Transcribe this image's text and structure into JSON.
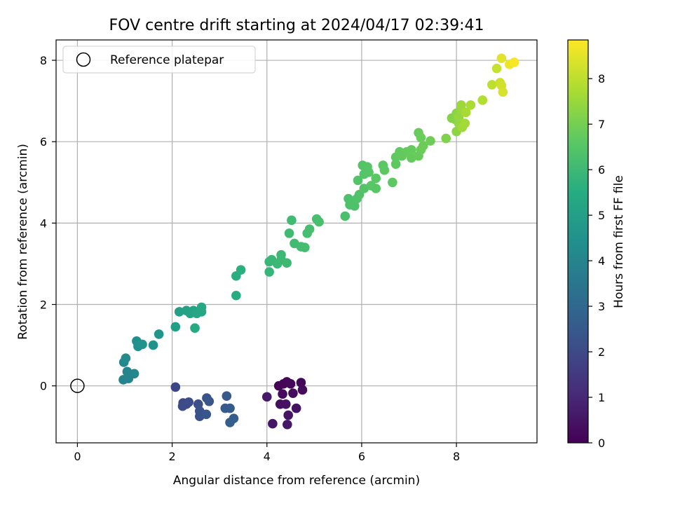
{
  "chart_data": {
    "type": "scatter",
    "title": "FOV centre drift starting at 2024/04/17 02:39:41",
    "xlabel": "Angular distance from reference (arcmin)",
    "ylabel": "Rotation from reference (arcmin)",
    "colorbar_label": "Hours from first FF file",
    "xlim": [
      -0.45,
      9.7
    ],
    "ylim": [
      -1.4,
      8.5
    ],
    "clim": [
      0,
      8.85
    ],
    "xticks": [
      "0",
      "2",
      "4",
      "6",
      "8"
    ],
    "yticks": [
      "0",
      "2",
      "4",
      "6",
      "8"
    ],
    "cticks": [
      "0",
      "1",
      "2",
      "3",
      "4",
      "5",
      "6",
      "7",
      "8"
    ],
    "grid": true,
    "colormap": "viridis",
    "legend": {
      "position": "top-left",
      "label": "Reference platepar"
    },
    "reference": {
      "x": 0,
      "y": 0
    },
    "points": [
      {
        "x": 4.25,
        "y": 0.0,
        "t": 0.05
      },
      {
        "x": 4.35,
        "y": 0.05,
        "t": 0.1
      },
      {
        "x": 4.42,
        "y": 0.1,
        "t": 0.12
      },
      {
        "x": 4.5,
        "y": 0.05,
        "t": 0.15
      },
      {
        "x": 4.72,
        "y": 0.08,
        "t": 0.18
      },
      {
        "x": 4.33,
        "y": -0.2,
        "t": 0.22
      },
      {
        "x": 4.55,
        "y": -0.18,
        "t": 0.25
      },
      {
        "x": 4.75,
        "y": -0.1,
        "t": 0.28
      },
      {
        "x": 4.28,
        "y": -0.45,
        "t": 0.35
      },
      {
        "x": 4.4,
        "y": -0.45,
        "t": 0.4
      },
      {
        "x": 4.62,
        "y": -0.55,
        "t": 0.45
      },
      {
        "x": 4.45,
        "y": -0.72,
        "t": 0.5
      },
      {
        "x": 4.12,
        "y": -0.93,
        "t": 0.55
      },
      {
        "x": 4.43,
        "y": -0.95,
        "t": 0.6
      },
      {
        "x": 4.0,
        "y": -0.27,
        "t": 0.65
      },
      {
        "x": 2.07,
        "y": -0.03,
        "t": 1.9
      },
      {
        "x": 2.23,
        "y": -0.42,
        "t": 1.95
      },
      {
        "x": 2.3,
        "y": -0.45,
        "t": 2.0
      },
      {
        "x": 2.22,
        "y": -0.5,
        "t": 2.05
      },
      {
        "x": 2.35,
        "y": -0.4,
        "t": 2.1
      },
      {
        "x": 2.55,
        "y": -0.45,
        "t": 2.15
      },
      {
        "x": 2.58,
        "y": -0.62,
        "t": 2.2
      },
      {
        "x": 2.58,
        "y": -0.75,
        "t": 2.25
      },
      {
        "x": 2.73,
        "y": -0.3,
        "t": 2.3
      },
      {
        "x": 2.78,
        "y": -0.38,
        "t": 2.35
      },
      {
        "x": 2.72,
        "y": -0.7,
        "t": 2.4
      },
      {
        "x": 3.15,
        "y": -0.25,
        "t": 2.5
      },
      {
        "x": 3.12,
        "y": -0.55,
        "t": 2.55
      },
      {
        "x": 3.22,
        "y": -0.55,
        "t": 2.6
      },
      {
        "x": 3.3,
        "y": -0.8,
        "t": 2.65
      },
      {
        "x": 3.22,
        "y": -0.9,
        "t": 2.7
      },
      {
        "x": 0.97,
        "y": 0.15,
        "t": 3.95
      },
      {
        "x": 1.08,
        "y": 0.18,
        "t": 4.0
      },
      {
        "x": 1.05,
        "y": 0.35,
        "t": 4.05
      },
      {
        "x": 1.2,
        "y": 0.3,
        "t": 4.1
      },
      {
        "x": 0.98,
        "y": 0.58,
        "t": 4.15
      },
      {
        "x": 1.02,
        "y": 0.68,
        "t": 4.2
      },
      {
        "x": 1.25,
        "y": 1.1,
        "t": 4.4
      },
      {
        "x": 1.28,
        "y": 0.97,
        "t": 4.45
      },
      {
        "x": 1.37,
        "y": 1.02,
        "t": 4.5
      },
      {
        "x": 1.6,
        "y": 1.0,
        "t": 4.55
      },
      {
        "x": 1.72,
        "y": 1.27,
        "t": 4.6
      },
      {
        "x": 2.07,
        "y": 1.45,
        "t": 5.0
      },
      {
        "x": 2.15,
        "y": 1.82,
        "t": 5.05
      },
      {
        "x": 2.3,
        "y": 1.85,
        "t": 5.1
      },
      {
        "x": 2.38,
        "y": 1.78,
        "t": 5.15
      },
      {
        "x": 2.45,
        "y": 1.85,
        "t": 5.2
      },
      {
        "x": 2.52,
        "y": 1.78,
        "t": 5.25
      },
      {
        "x": 2.62,
        "y": 1.82,
        "t": 5.3
      },
      {
        "x": 2.62,
        "y": 1.93,
        "t": 5.35
      },
      {
        "x": 2.48,
        "y": 1.42,
        "t": 5.4
      },
      {
        "x": 3.35,
        "y": 2.22,
        "t": 5.5
      },
      {
        "x": 3.35,
        "y": 2.7,
        "t": 5.55
      },
      {
        "x": 3.45,
        "y": 2.85,
        "t": 5.6
      },
      {
        "x": 4.05,
        "y": 2.8,
        "t": 5.85
      },
      {
        "x": 4.05,
        "y": 3.05,
        "t": 5.9
      },
      {
        "x": 4.1,
        "y": 3.1,
        "t": 5.92
      },
      {
        "x": 4.22,
        "y": 3.0,
        "t": 5.95
      },
      {
        "x": 4.3,
        "y": 3.1,
        "t": 5.97
      },
      {
        "x": 4.3,
        "y": 3.22,
        "t": 6.0
      },
      {
        "x": 4.42,
        "y": 3.02,
        "t": 6.02
      },
      {
        "x": 4.47,
        "y": 3.75,
        "t": 6.05
      },
      {
        "x": 4.52,
        "y": 4.07,
        "t": 6.08
      },
      {
        "x": 4.58,
        "y": 3.5,
        "t": 6.1
      },
      {
        "x": 4.72,
        "y": 3.42,
        "t": 6.12
      },
      {
        "x": 4.8,
        "y": 3.4,
        "t": 6.15
      },
      {
        "x": 4.85,
        "y": 3.75,
        "t": 6.17
      },
      {
        "x": 4.9,
        "y": 3.85,
        "t": 6.2
      },
      {
        "x": 5.05,
        "y": 4.1,
        "t": 6.22
      },
      {
        "x": 5.1,
        "y": 4.03,
        "t": 6.24
      },
      {
        "x": 5.65,
        "y": 4.17,
        "t": 6.28
      },
      {
        "x": 5.72,
        "y": 4.6,
        "t": 6.3
      },
      {
        "x": 5.75,
        "y": 4.45,
        "t": 6.32
      },
      {
        "x": 5.8,
        "y": 4.5,
        "t": 6.34
      },
      {
        "x": 5.85,
        "y": 4.42,
        "t": 6.36
      },
      {
        "x": 5.9,
        "y": 4.6,
        "t": 6.38
      },
      {
        "x": 5.95,
        "y": 4.7,
        "t": 6.4
      },
      {
        "x": 5.92,
        "y": 5.05,
        "t": 6.42
      },
      {
        "x": 6.05,
        "y": 4.85,
        "t": 6.44
      },
      {
        "x": 6.05,
        "y": 5.2,
        "t": 6.46
      },
      {
        "x": 6.02,
        "y": 5.42,
        "t": 6.48
      },
      {
        "x": 6.12,
        "y": 5.38,
        "t": 6.5
      },
      {
        "x": 6.15,
        "y": 5.25,
        "t": 6.52
      },
      {
        "x": 6.2,
        "y": 4.92,
        "t": 6.54
      },
      {
        "x": 6.3,
        "y": 4.85,
        "t": 6.56
      },
      {
        "x": 6.3,
        "y": 5.1,
        "t": 6.58
      },
      {
        "x": 6.45,
        "y": 5.42,
        "t": 6.6
      },
      {
        "x": 6.48,
        "y": 5.3,
        "t": 6.62
      },
      {
        "x": 6.65,
        "y": 5.0,
        "t": 6.64
      },
      {
        "x": 6.72,
        "y": 5.45,
        "t": 6.66
      },
      {
        "x": 6.72,
        "y": 5.62,
        "t": 6.68
      },
      {
        "x": 6.8,
        "y": 5.75,
        "t": 6.7
      },
      {
        "x": 6.85,
        "y": 5.65,
        "t": 6.72
      },
      {
        "x": 6.95,
        "y": 5.75,
        "t": 6.74
      },
      {
        "x": 7.05,
        "y": 5.6,
        "t": 6.76
      },
      {
        "x": 7.05,
        "y": 5.8,
        "t": 6.78
      },
      {
        "x": 7.2,
        "y": 5.65,
        "t": 6.8
      },
      {
        "x": 7.2,
        "y": 6.22,
        "t": 6.82
      },
      {
        "x": 7.25,
        "y": 6.1,
        "t": 6.84
      },
      {
        "x": 7.25,
        "y": 5.8,
        "t": 6.86
      },
      {
        "x": 7.3,
        "y": 5.9,
        "t": 6.88
      },
      {
        "x": 7.45,
        "y": 6.02,
        "t": 6.9
      },
      {
        "x": 7.78,
        "y": 6.08,
        "t": 7.15
      },
      {
        "x": 7.9,
        "y": 6.58,
        "t": 7.2
      },
      {
        "x": 7.97,
        "y": 6.55,
        "t": 7.25
      },
      {
        "x": 8.0,
        "y": 6.7,
        "t": 7.3
      },
      {
        "x": 8.0,
        "y": 6.25,
        "t": 7.35
      },
      {
        "x": 8.05,
        "y": 6.45,
        "t": 7.4
      },
      {
        "x": 8.05,
        "y": 6.6,
        "t": 7.45
      },
      {
        "x": 8.1,
        "y": 6.8,
        "t": 7.5
      },
      {
        "x": 8.1,
        "y": 6.9,
        "t": 7.55
      },
      {
        "x": 8.12,
        "y": 6.35,
        "t": 7.6
      },
      {
        "x": 8.18,
        "y": 6.45,
        "t": 7.65
      },
      {
        "x": 8.2,
        "y": 6.72,
        "t": 7.7
      },
      {
        "x": 8.3,
        "y": 6.9,
        "t": 7.75
      },
      {
        "x": 8.55,
        "y": 7.02,
        "t": 7.85
      },
      {
        "x": 8.75,
        "y": 7.4,
        "t": 8.0
      },
      {
        "x": 8.85,
        "y": 7.8,
        "t": 8.1
      },
      {
        "x": 8.92,
        "y": 7.45,
        "t": 8.2
      },
      {
        "x": 8.95,
        "y": 7.38,
        "t": 8.25
      },
      {
        "x": 8.98,
        "y": 7.22,
        "t": 8.35
      },
      {
        "x": 8.95,
        "y": 8.05,
        "t": 8.5
      },
      {
        "x": 9.12,
        "y": 7.9,
        "t": 8.65
      },
      {
        "x": 9.22,
        "y": 7.95,
        "t": 8.8
      }
    ]
  }
}
